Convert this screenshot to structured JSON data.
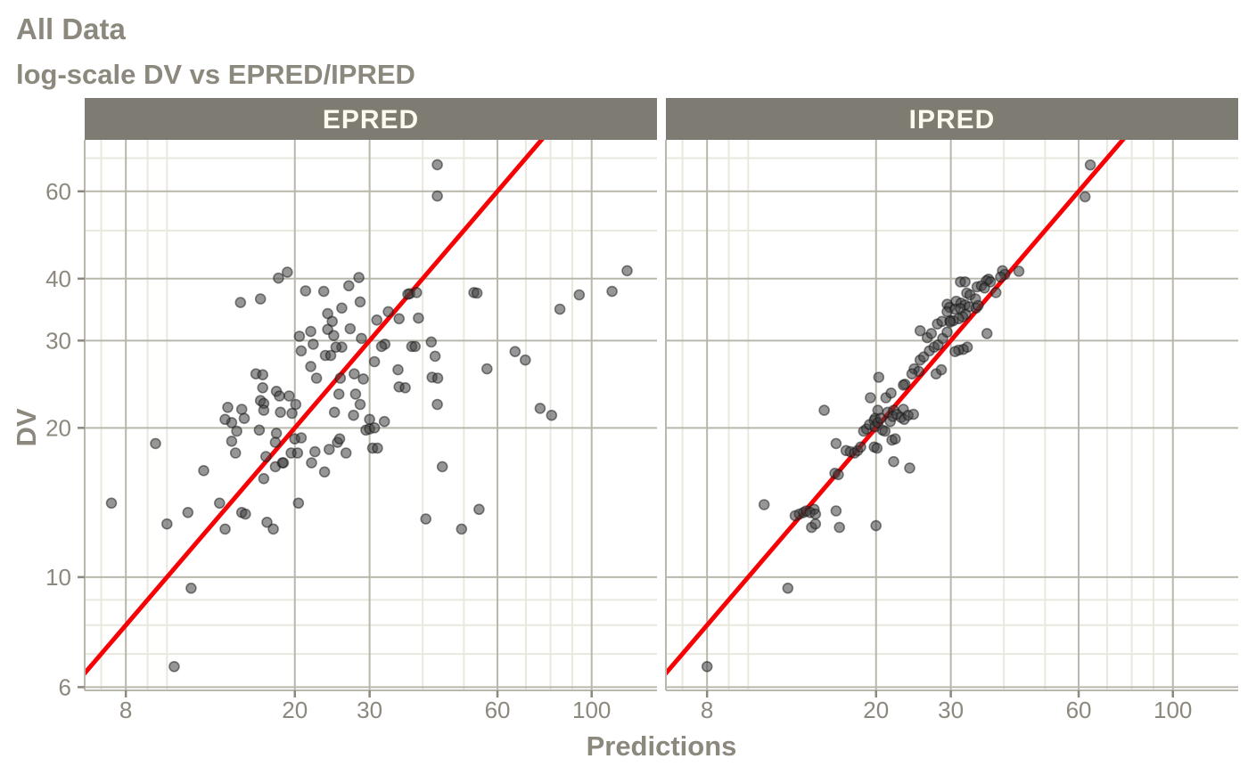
{
  "title": "All Data",
  "subtitle": "log-scale DV vs EPRED/IPRED",
  "colors": {
    "background": "#ffffff",
    "title_text": "#8c887e",
    "axis_text": "#8c887e",
    "strip_bg": "#7e7b73",
    "strip_text": "#fdf9ef",
    "grid_major": "#b9b7ac",
    "grid_minor": "#e9e8de",
    "axis_line": "#b9b7ac",
    "tick_mark": "#8c887e",
    "point_fill": "#404040",
    "point_stroke": "#141414",
    "identity_line": "#f60205"
  },
  "chart_data": {
    "type": "scatter",
    "title": "All Data",
    "subtitle": "log-scale DV vs EPRED/IPRED",
    "xlabel": "Predictions",
    "ylabel": "DV",
    "log_x": true,
    "log_y": true,
    "xlim": [
      6.4,
      142.5
    ],
    "ylim": [
      5.91,
      76.2
    ],
    "x_major_breaks": [
      8,
      20,
      30,
      60,
      100
    ],
    "x_minor_breaks": [
      7,
      9,
      10,
      40,
      50,
      70,
      80,
      90
    ],
    "y_major_breaks": [
      6,
      10,
      20,
      30,
      40,
      60
    ],
    "y_minor_breaks": [
      7,
      8,
      9,
      50,
      70
    ],
    "identity_line": true,
    "legend": "none",
    "facets": [
      {
        "label": "EPRED",
        "points": [
          [
            14.9,
            35.8
          ],
          [
            16.6,
            36.4
          ],
          [
            18.3,
            40.1
          ],
          [
            19.2,
            41.2
          ],
          [
            21.2,
            37.8
          ],
          [
            23.4,
            37.7
          ],
          [
            26.8,
            38.7
          ],
          [
            28.3,
            40.2
          ],
          [
            25.8,
            34.9
          ],
          [
            28.5,
            35.9
          ],
          [
            23.9,
            34
          ],
          [
            24.5,
            32.8
          ],
          [
            23.9,
            31.6
          ],
          [
            21.8,
            31.3
          ],
          [
            20.5,
            30.6
          ],
          [
            20.7,
            28.6
          ],
          [
            22.1,
            29.5
          ],
          [
            24.7,
            30.7
          ],
          [
            25.8,
            29.1
          ],
          [
            23.6,
            28
          ],
          [
            24.3,
            28
          ],
          [
            21.8,
            26.6
          ],
          [
            22.5,
            25.2
          ],
          [
            16.2,
            25.7
          ],
          [
            16.8,
            25.6
          ],
          [
            18.1,
            23.7
          ],
          [
            16.8,
            24.1
          ],
          [
            16.6,
            22.7
          ],
          [
            16.9,
            22.4
          ],
          [
            18.4,
            23.2
          ],
          [
            19.4,
            23.2
          ],
          [
            20.1,
            22.3
          ],
          [
            19.7,
            21.4
          ],
          [
            18.5,
            21.5
          ],
          [
            13.9,
            22
          ],
          [
            15,
            21.8
          ],
          [
            15.2,
            20.9
          ],
          [
            25.4,
            23.4
          ],
          [
            27.6,
            25.7
          ],
          [
            25.6,
            25.2
          ],
          [
            29,
            25.1
          ],
          [
            27.8,
            23.4
          ],
          [
            28.5,
            22.3
          ],
          [
            28.7,
            30.3
          ],
          [
            27,
            31.7
          ],
          [
            25,
            29.1
          ],
          [
            43.3,
            67.9
          ],
          [
            43.3,
            58.7
          ],
          [
            37.3,
            37.3
          ],
          [
            38.7,
            37.5
          ],
          [
            36.9,
            37.2
          ],
          [
            52.8,
            37.5
          ],
          [
            53.7,
            37.4
          ],
          [
            84.2,
            34.7
          ],
          [
            93.5,
            37.1
          ],
          [
            111.7,
            37.7
          ],
          [
            121.2,
            41.5
          ],
          [
            33.2,
            34.3
          ],
          [
            35.2,
            33.2
          ],
          [
            39.1,
            33.3
          ],
          [
            31.2,
            33
          ],
          [
            32.6,
            29.5
          ],
          [
            32,
            29.2
          ],
          [
            37.7,
            29.2
          ],
          [
            38.4,
            29.2
          ],
          [
            41.9,
            29.8
          ],
          [
            42.8,
            27.9
          ],
          [
            35,
            26.2
          ],
          [
            30.8,
            27.2
          ],
          [
            35.2,
            24.2
          ],
          [
            36.4,
            24.1
          ],
          [
            42.1,
            25.3
          ],
          [
            43.4,
            25.2
          ],
          [
            43.3,
            22.3
          ],
          [
            56.7,
            26.3
          ],
          [
            66,
            28.5
          ],
          [
            69.8,
            27.4
          ],
          [
            75.6,
            21.9
          ],
          [
            80.5,
            21.2
          ],
          [
            9.4,
            18.6
          ],
          [
            7.4,
            14.1
          ],
          [
            12.2,
            16.4
          ],
          [
            10,
            12.8
          ],
          [
            11.2,
            13.5
          ],
          [
            13.3,
            14.1
          ],
          [
            13.7,
            12.5
          ],
          [
            15,
            13.5
          ],
          [
            15.3,
            13.4
          ],
          [
            17.2,
            12.9
          ],
          [
            17.8,
            12.5
          ],
          [
            20.4,
            14.1
          ],
          [
            16.9,
            15.8
          ],
          [
            18,
            16.7
          ],
          [
            18.7,
            17
          ],
          [
            14.2,
            20.5
          ],
          [
            14.6,
            19.7
          ],
          [
            14.2,
            18.8
          ],
          [
            14.5,
            17.8
          ],
          [
            16.5,
            19.8
          ],
          [
            18.1,
            19.5
          ],
          [
            17.1,
            17.5
          ],
          [
            18,
            18.7
          ],
          [
            20,
            19
          ],
          [
            20.7,
            19.1
          ],
          [
            19.6,
            17.8
          ],
          [
            20.3,
            17.8
          ],
          [
            18.8,
            17
          ],
          [
            22.3,
            17.9
          ],
          [
            21.9,
            17
          ],
          [
            23.5,
            16.3
          ],
          [
            24.1,
            18.1
          ],
          [
            25.2,
            18.7
          ],
          [
            25.5,
            19
          ],
          [
            26.4,
            17.8
          ],
          [
            29.4,
            19.8
          ],
          [
            30,
            19.9
          ],
          [
            30.5,
            18.2
          ],
          [
            11.4,
            9.5
          ],
          [
            10.4,
            6.6
          ],
          [
            13.7,
            20.8
          ],
          [
            16.9,
            21.7
          ],
          [
            24.8,
            21.5
          ],
          [
            27.5,
            21.2
          ],
          [
            30,
            20.8
          ],
          [
            32.5,
            20.6
          ],
          [
            30.8,
            20
          ],
          [
            31.3,
            18.2
          ],
          [
            44.5,
            16.7
          ],
          [
            54.3,
            13.7
          ],
          [
            40.7,
            13.1
          ],
          [
            49.4,
            12.5
          ]
        ]
      },
      {
        "label": "IPRED",
        "points": [
          [
            15.1,
            21.7
          ],
          [
            20.3,
            25.3
          ],
          [
            19.4,
            23
          ],
          [
            21.1,
            23
          ],
          [
            21.7,
            23.5
          ],
          [
            23.4,
            24.5
          ],
          [
            23.2,
            24.4
          ],
          [
            24.6,
            26.3
          ],
          [
            25.4,
            27.4
          ],
          [
            25.9,
            27.8
          ],
          [
            25.2,
            26
          ],
          [
            24.3,
            25.7
          ],
          [
            27.7,
            25.7
          ],
          [
            28.5,
            26.2
          ],
          [
            26.7,
            28.6
          ],
          [
            27.4,
            29.1
          ],
          [
            28,
            29.4
          ],
          [
            28.7,
            30.3
          ],
          [
            29.4,
            31.2
          ],
          [
            26.4,
            30.4
          ],
          [
            27,
            31
          ],
          [
            25.4,
            31.4
          ],
          [
            27.9,
            32.4
          ],
          [
            28.6,
            32.8
          ],
          [
            29.9,
            32.9
          ],
          [
            20.2,
            21.7
          ],
          [
            21.3,
            21.5
          ],
          [
            22,
            21.7
          ],
          [
            23.2,
            21.8
          ],
          [
            19.9,
            20.9
          ],
          [
            63.9,
            67.8
          ],
          [
            62.1,
            58.5
          ],
          [
            43.4,
            41.4
          ],
          [
            39.7,
            41.5
          ],
          [
            40.2,
            40.8
          ],
          [
            39.3,
            40.3
          ],
          [
            36.8,
            39.9
          ],
          [
            36.4,
            39.6
          ],
          [
            37.2,
            39.4
          ],
          [
            31.6,
            39.4
          ],
          [
            32.4,
            39.4
          ],
          [
            34.6,
            38.5
          ],
          [
            35.4,
            38.7
          ],
          [
            36,
            38.3
          ],
          [
            38.3,
            37.5
          ],
          [
            32.7,
            37.4
          ],
          [
            33.3,
            37.1
          ],
          [
            30.9,
            36
          ],
          [
            31.7,
            35.7
          ],
          [
            32.4,
            35.4
          ],
          [
            33.1,
            35.1
          ],
          [
            34.3,
            36.4
          ],
          [
            29.4,
            35.5
          ],
          [
            29.8,
            35
          ],
          [
            29.4,
            34.3
          ],
          [
            30.7,
            34.7
          ],
          [
            31.6,
            34.8
          ],
          [
            34.4,
            34.9
          ],
          [
            34.8,
            35.3
          ],
          [
            32.5,
            33.9
          ],
          [
            32,
            33.5
          ],
          [
            31.3,
            33.2
          ],
          [
            30.4,
            32.9
          ],
          [
            29.9,
            32.7
          ],
          [
            36.5,
            31
          ],
          [
            32.8,
            29.1
          ],
          [
            32.1,
            28.8
          ],
          [
            31.3,
            28.7
          ],
          [
            30.7,
            28.5
          ],
          [
            8,
            6.6
          ],
          [
            12.4,
            9.5
          ],
          [
            10.9,
            14
          ],
          [
            12.9,
            13.3
          ],
          [
            13.2,
            13.4
          ],
          [
            13.5,
            13.5
          ],
          [
            13.7,
            13.6
          ],
          [
            14.3,
            13.7
          ],
          [
            14,
            13.5
          ],
          [
            14.4,
            13.4
          ],
          [
            16.1,
            13.6
          ],
          [
            14.1,
            12.6
          ],
          [
            14.4,
            12.8
          ],
          [
            16.4,
            12.6
          ],
          [
            20,
            12.7
          ],
          [
            16.1,
            18.6
          ],
          [
            17,
            18
          ],
          [
            17.4,
            17.9
          ],
          [
            17.8,
            17.8
          ],
          [
            18.1,
            18
          ],
          [
            18.4,
            18.3
          ],
          [
            18.7,
            19.7
          ],
          [
            19,
            19.9
          ],
          [
            19.3,
            20.3
          ],
          [
            19.8,
            20.7
          ],
          [
            19.9,
            20.1
          ],
          [
            20.2,
            20.5
          ],
          [
            20.5,
            20.9
          ],
          [
            20.7,
            19.8
          ],
          [
            21,
            19.7
          ],
          [
            21.6,
            20.6
          ],
          [
            21.9,
            21.1
          ],
          [
            22.4,
            21.3
          ],
          [
            22.9,
            21
          ],
          [
            23.3,
            20.8
          ],
          [
            23.8,
            21.2
          ],
          [
            24.5,
            21.3
          ],
          [
            19.8,
            18.3
          ],
          [
            20.1,
            18.2
          ],
          [
            21.8,
            18.9
          ],
          [
            22.2,
            19
          ],
          [
            22,
            17.1
          ],
          [
            24,
            16.6
          ],
          [
            16,
            16.2
          ],
          [
            16.3,
            16.1
          ]
        ]
      }
    ]
  }
}
